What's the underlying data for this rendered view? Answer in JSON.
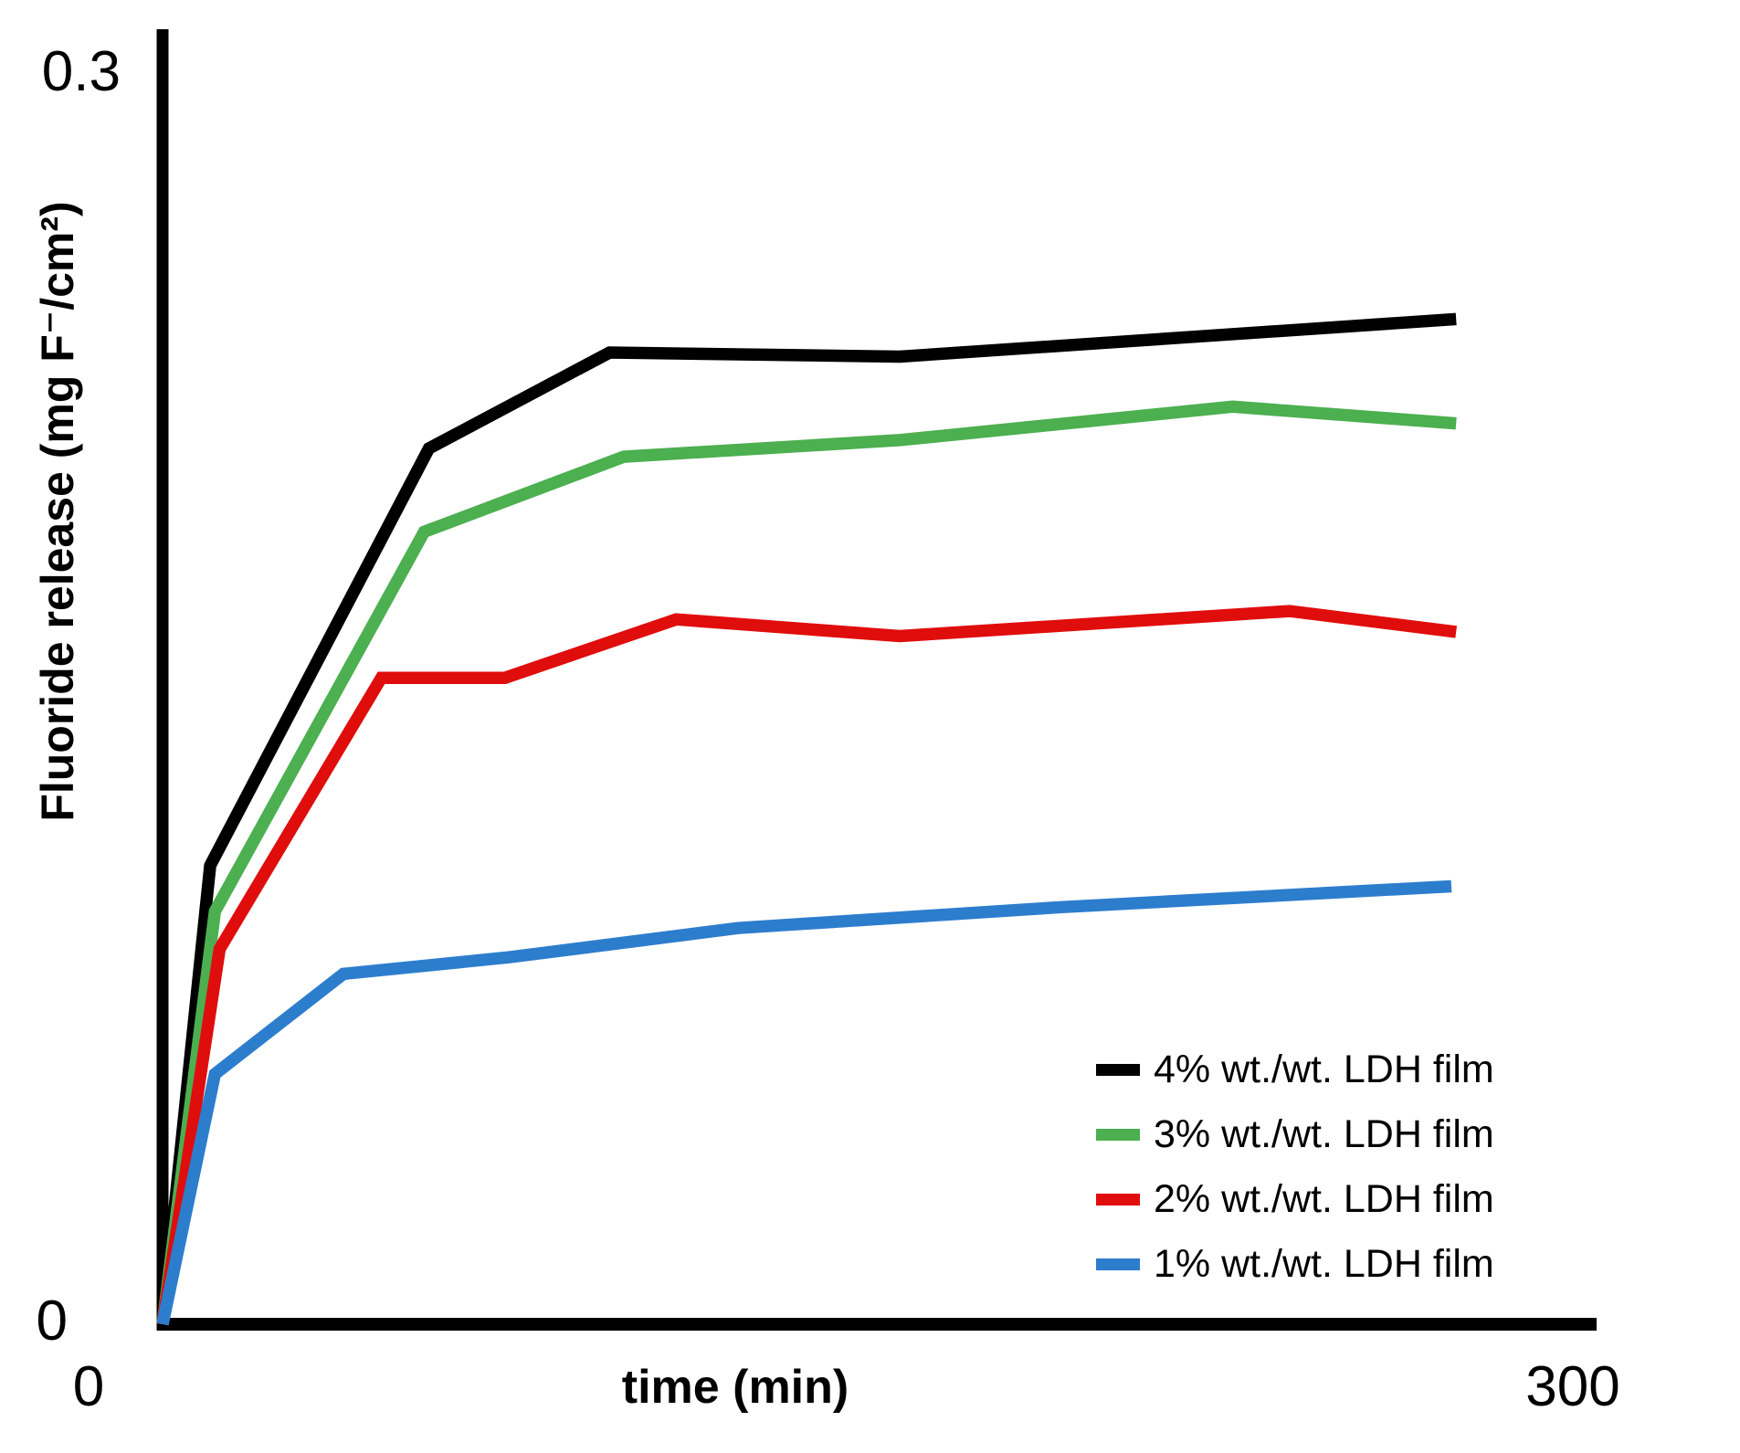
{
  "chart_data": {
    "type": "line",
    "title": "",
    "xlabel": "time (min)",
    "ylabel": "Fluoride release (mg F⁻/cm²)",
    "xlim": [
      0,
      300
    ],
    "ylim": [
      0,
      0.3
    ],
    "grid": false,
    "legend_position": "lower right",
    "axis_color": "#000000",
    "x_ticks": [
      {
        "value": 0,
        "label": "0"
      },
      {
        "value": 300,
        "label": "300"
      }
    ],
    "y_ticks": [
      {
        "value": 0,
        "label": "0"
      },
      {
        "value": 0.3,
        "label": "0.3"
      }
    ],
    "series": [
      {
        "name": "4% wt./wt. LDH film",
        "color": "#000000",
        "x": [
          0,
          10,
          56,
          94,
          155,
          272
        ],
        "y": [
          0,
          0.11,
          0.21,
          0.233,
          0.232,
          0.241
        ]
      },
      {
        "name": "3% wt./wt. LDH film",
        "color": "#4caf50",
        "x": [
          0,
          11,
          55,
          97,
          155,
          225,
          272
        ],
        "y": [
          0,
          0.099,
          0.19,
          0.208,
          0.212,
          0.22,
          0.216
        ]
      },
      {
        "name": "2% wt./wt. LDH film",
        "color": "#e00d0d",
        "x": [
          0,
          12,
          46,
          72,
          108,
          155,
          237,
          272
        ],
        "y": [
          0,
          0.09,
          0.155,
          0.155,
          0.169,
          0.165,
          0.171,
          0.166
        ]
      },
      {
        "name": "1% wt./wt. LDH film",
        "color": "#2d7dcd",
        "x": [
          0,
          11,
          38,
          73,
          121,
          189,
          271
        ],
        "y": [
          0,
          0.06,
          0.084,
          0.088,
          0.095,
          0.1,
          0.105
        ]
      }
    ]
  }
}
